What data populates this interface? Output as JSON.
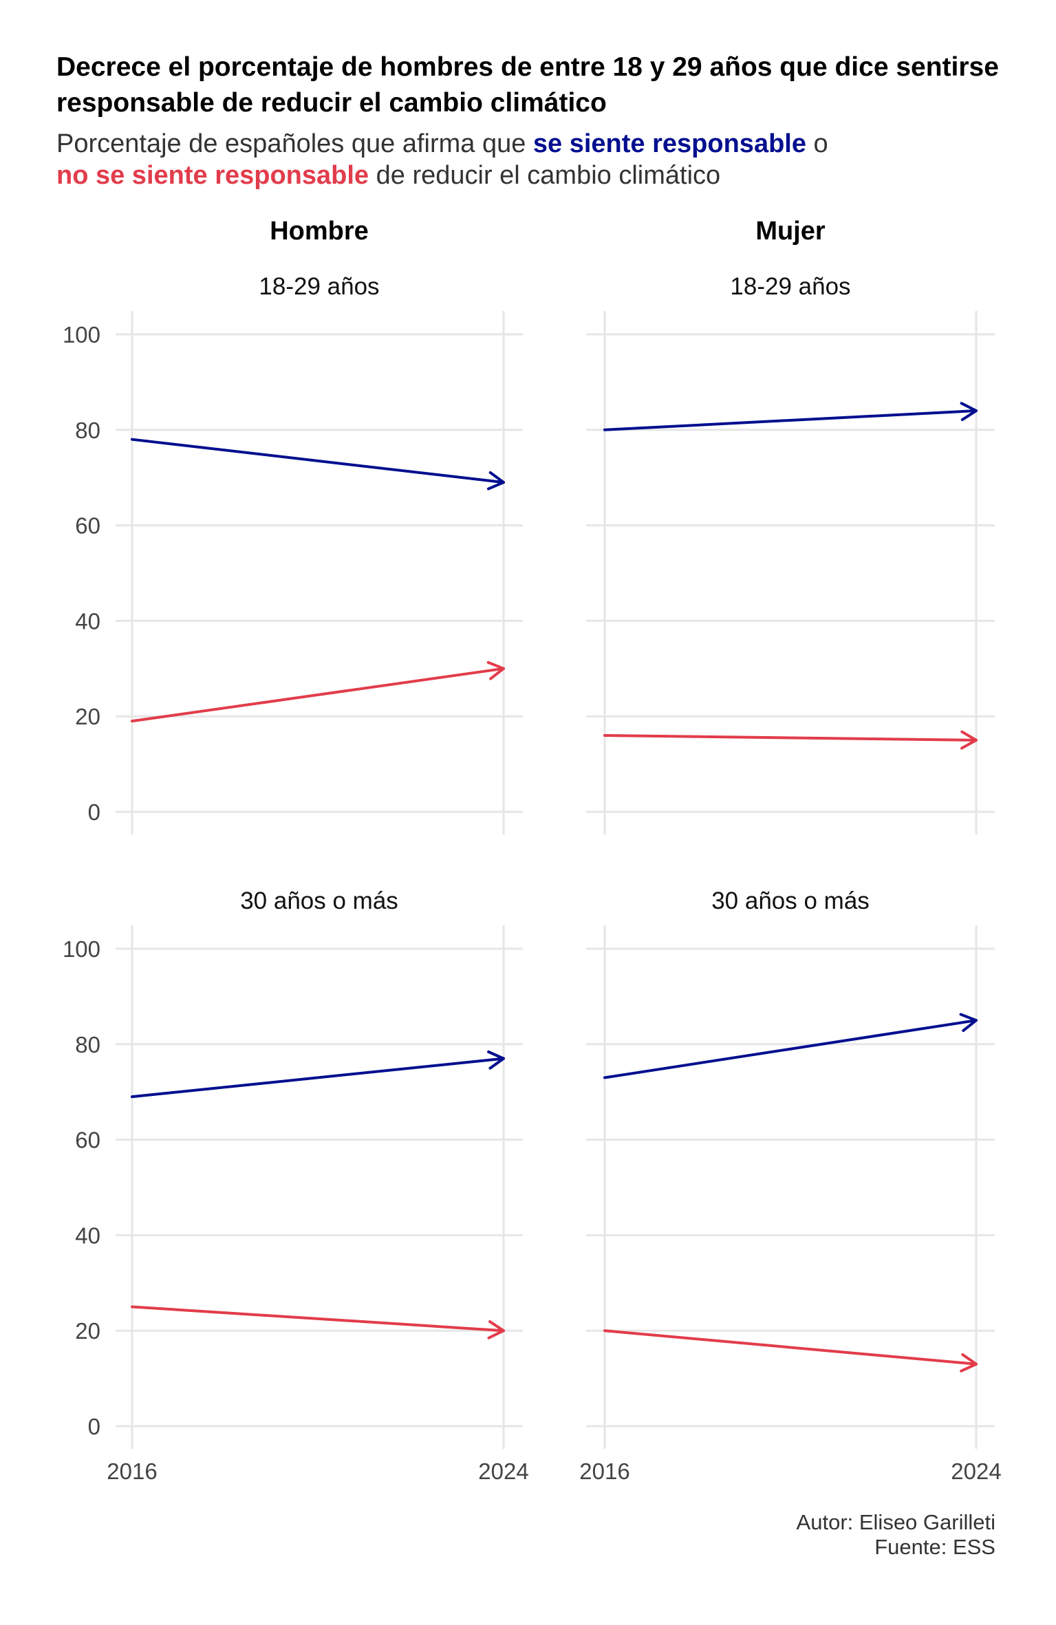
{
  "title": "Decrece el porcentaje de hombres de entre 18 y 29 años que dice sentirse responsable de reducir el cambio climático",
  "subtitle": {
    "prefix": "Porcentaje de españoles que afirma que ",
    "blue_term": "se siente responsable",
    "middle": " o",
    "red_term": "no se siente responsable",
    "suffix": " de reducir el cambio climático"
  },
  "caption": {
    "author": "Autor: Eliseo Garilleti",
    "source": "Fuente: ESS"
  },
  "colors": {
    "responsable": "#000f8f",
    "no_responsable": "#e23c4b",
    "grid": "#e6e6e6"
  },
  "chart_data": {
    "type": "line",
    "x": [
      2016,
      2024
    ],
    "x_ticks": [
      "2016",
      "2024"
    ],
    "y_ticks": [
      "0",
      "20",
      "40",
      "60",
      "80",
      "100"
    ],
    "ylim": [
      0,
      100
    ],
    "grid": true,
    "columns": [
      "Hombre",
      "Mujer"
    ],
    "rows": [
      "18-29 años",
      "30 años o más"
    ],
    "panels": [
      {
        "column": "Hombre",
        "row": "18-29 años",
        "series": [
          {
            "key": "responsable",
            "values": [
              78,
              69
            ]
          },
          {
            "key": "no_responsable",
            "values": [
              19,
              30
            ]
          }
        ]
      },
      {
        "column": "Mujer",
        "row": "18-29 años",
        "series": [
          {
            "key": "responsable",
            "values": [
              80,
              84
            ]
          },
          {
            "key": "no_responsable",
            "values": [
              16,
              15
            ]
          }
        ]
      },
      {
        "column": "Hombre",
        "row": "30 años o más",
        "series": [
          {
            "key": "responsable",
            "values": [
              69,
              77
            ]
          },
          {
            "key": "no_responsable",
            "values": [
              25,
              20
            ]
          }
        ]
      },
      {
        "column": "Mujer",
        "row": "30 años o más",
        "series": [
          {
            "key": "responsable",
            "values": [
              73,
              85
            ]
          },
          {
            "key": "no_responsable",
            "values": [
              20,
              13
            ]
          }
        ]
      }
    ]
  }
}
